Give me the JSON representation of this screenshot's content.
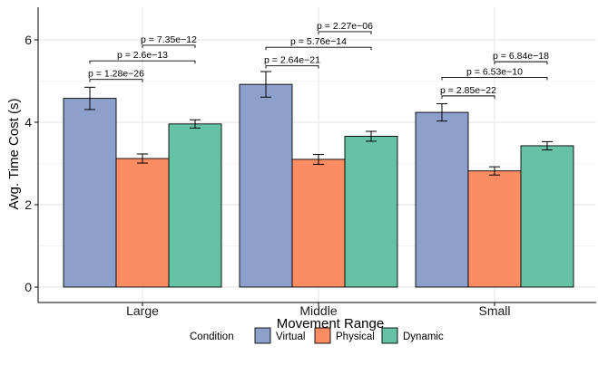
{
  "chart_data": {
    "type": "bar",
    "title": "",
    "xlabel": "Movement Range",
    "ylabel": "Avg. Time Cost (s)",
    "ylim": [
      0,
      6.8
    ],
    "yticks": [
      0,
      2,
      4,
      6
    ],
    "categories": [
      "Large",
      "Middle",
      "Small"
    ],
    "series": [
      {
        "name": "Virtual",
        "color": "#8DA0CB",
        "values": [
          4.58,
          4.92,
          4.24
        ],
        "errors": [
          0.27,
          0.31,
          0.21
        ]
      },
      {
        "name": "Physical",
        "color": "#FC8D62",
        "values": [
          3.12,
          3.1,
          2.82
        ],
        "errors": [
          0.11,
          0.12,
          0.1
        ]
      },
      {
        "name": "Dynamic",
        "color": "#66C2A5",
        "values": [
          3.96,
          3.66,
          3.43
        ],
        "errors": [
          0.1,
          0.12,
          0.1
        ]
      }
    ],
    "comparisons": [
      {
        "category": 0,
        "from": 0,
        "to": 1,
        "label": "p = 1.28e−26",
        "y": 5.04
      },
      {
        "category": 0,
        "from": 0,
        "to": 2,
        "label": "p = 2.6e−13",
        "y": 5.49
      },
      {
        "category": 0,
        "from": 1,
        "to": 2,
        "label": "p = 7.35e−12",
        "y": 5.87
      },
      {
        "category": 1,
        "from": 0,
        "to": 1,
        "label": "p = 2.64e−21",
        "y": 5.37
      },
      {
        "category": 1,
        "from": 0,
        "to": 2,
        "label": "p = 5.76e−14",
        "y": 5.82
      },
      {
        "category": 1,
        "from": 1,
        "to": 2,
        "label": "p = 2.27e−06",
        "y": 6.2
      },
      {
        "category": 2,
        "from": 0,
        "to": 1,
        "label": "p = 2.85e−22",
        "y": 4.64
      },
      {
        "category": 2,
        "from": 0,
        "to": 2,
        "label": "p = 6.53e−10",
        "y": 5.09
      },
      {
        "category": 2,
        "from": 1,
        "to": 2,
        "label": "p = 6.84e−18",
        "y": 5.47
      }
    ],
    "legend": {
      "title": "Condition",
      "position": "bottom"
    },
    "grid": true
  }
}
